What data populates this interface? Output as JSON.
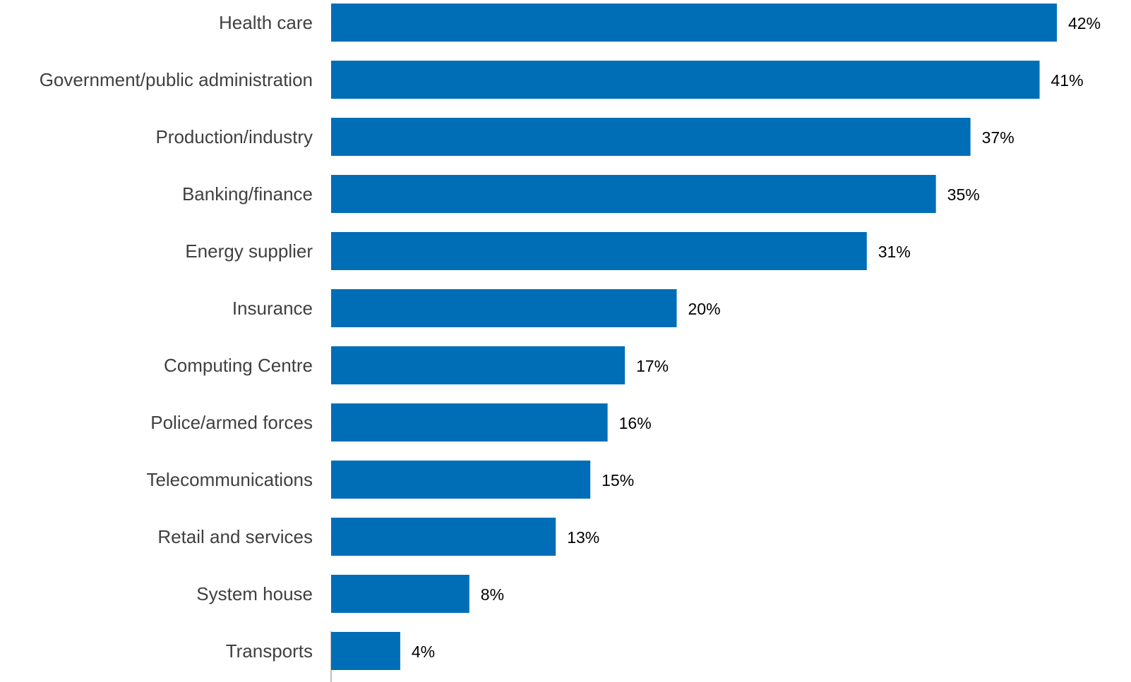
{
  "chart_data": {
    "type": "bar",
    "orientation": "horizontal",
    "categories": [
      "Health care",
      "Government/public administration",
      "Production/industry",
      "Banking/finance",
      "Energy supplier",
      "Insurance",
      "Computing Centre",
      "Police/armed forces",
      "Telecommunications",
      "Retail and services",
      "System house",
      "Transports"
    ],
    "values": [
      42,
      41,
      37,
      35,
      31,
      20,
      17,
      16,
      15,
      13,
      8,
      4
    ],
    "value_labels": [
      "42%",
      "41%",
      "37%",
      "35%",
      "31%",
      "20%",
      "17%",
      "16%",
      "15%",
      "13%",
      "8%",
      "4%"
    ],
    "unit": "%",
    "xlim": [
      0,
      42
    ],
    "title": "",
    "xlabel": "",
    "ylabel": "",
    "grid": false,
    "legend": "none",
    "colors": {
      "bar": "#006EB7",
      "category_text": "#404040",
      "value_text": "#000000",
      "axis_line": "#BFBFBF"
    }
  }
}
